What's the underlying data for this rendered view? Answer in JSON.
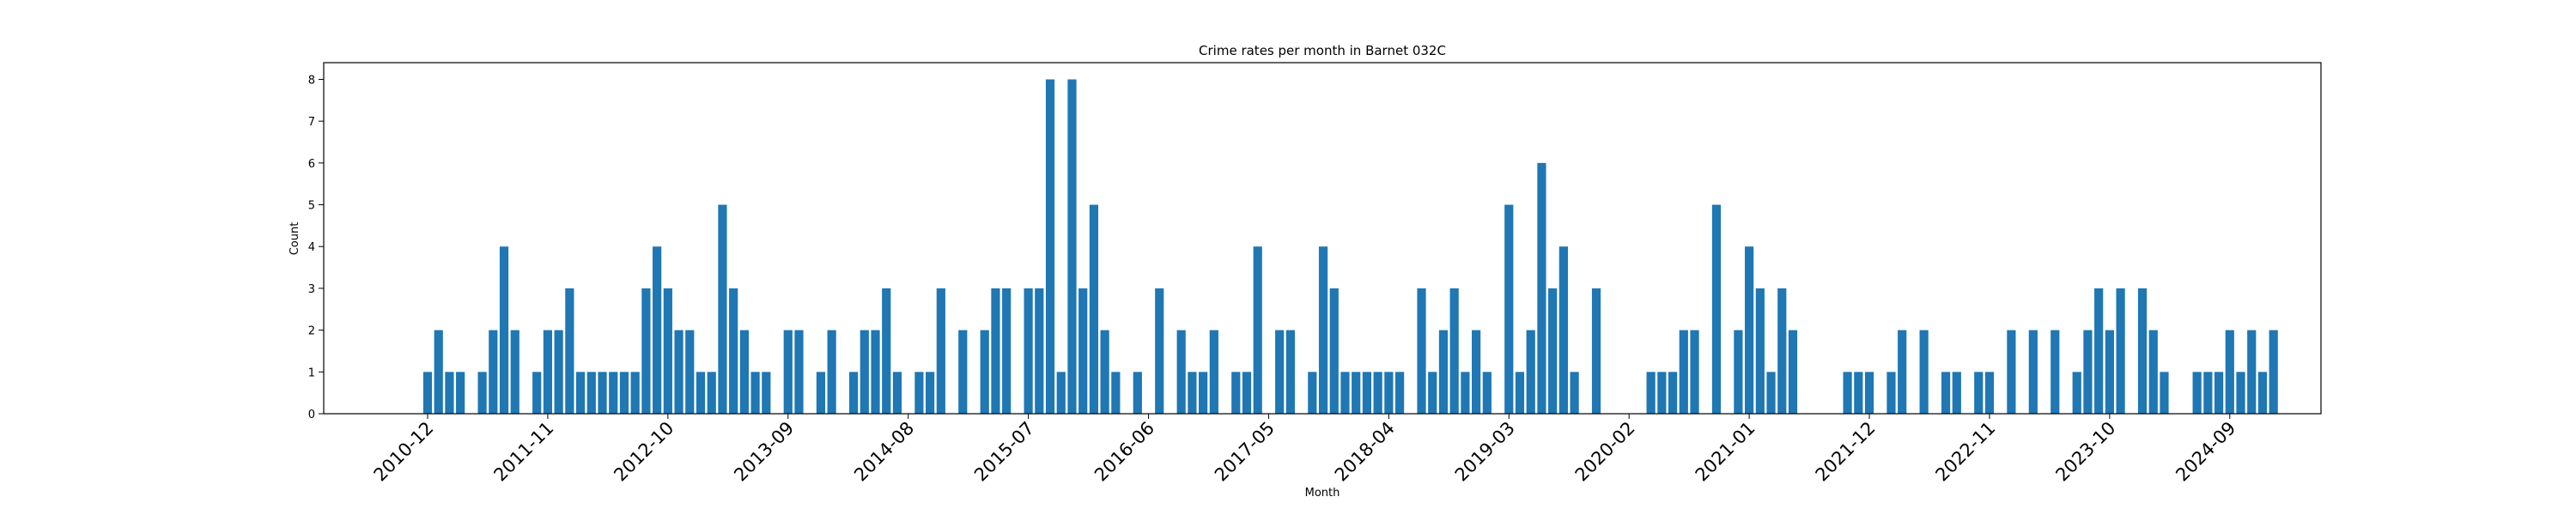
{
  "chart_data": {
    "type": "bar",
    "title": "Crime rates per month in Barnet 032C",
    "xlabel": "Month",
    "ylabel": "Count",
    "ylim": [
      0,
      8.4
    ],
    "yticks": [
      0,
      1,
      2,
      3,
      4,
      5,
      6,
      7,
      8
    ],
    "xticklabels": [
      "2010-12",
      "2011-11",
      "2012-10",
      "2013-09",
      "2014-08",
      "2015-07",
      "2016-06",
      "2017-05",
      "2018-04",
      "2019-03",
      "2020-02",
      "2021-01",
      "2021-12",
      "2022-11",
      "2023-10",
      "2024-09"
    ],
    "grid": false,
    "bar_color": "#1f77b4",
    "categories": [
      "2010-12",
      "2011-01",
      "2011-02",
      "2011-03",
      "2011-04",
      "2011-05",
      "2011-06",
      "2011-07",
      "2011-08",
      "2011-09",
      "2011-10",
      "2011-11",
      "2011-12",
      "2012-01",
      "2012-02",
      "2012-03",
      "2012-04",
      "2012-05",
      "2012-06",
      "2012-07",
      "2012-08",
      "2012-09",
      "2012-10",
      "2012-11",
      "2012-12",
      "2013-01",
      "2013-02",
      "2013-03",
      "2013-04",
      "2013-05",
      "2013-06",
      "2013-07",
      "2013-08",
      "2013-09",
      "2013-10",
      "2013-11",
      "2013-12",
      "2014-01",
      "2014-02",
      "2014-03",
      "2014-04",
      "2014-05",
      "2014-06",
      "2014-07",
      "2014-08",
      "2014-09",
      "2014-10",
      "2014-11",
      "2014-12",
      "2015-01",
      "2015-02",
      "2015-03",
      "2015-04",
      "2015-05",
      "2015-06",
      "2015-07",
      "2015-08",
      "2015-09",
      "2015-10",
      "2015-11",
      "2015-12",
      "2016-01",
      "2016-02",
      "2016-03",
      "2016-04",
      "2016-05",
      "2016-06",
      "2016-07",
      "2016-08",
      "2016-09",
      "2016-10",
      "2016-11",
      "2016-12",
      "2017-01",
      "2017-02",
      "2017-03",
      "2017-04",
      "2017-05",
      "2017-06",
      "2017-07",
      "2017-08",
      "2017-09",
      "2017-10",
      "2017-11",
      "2017-12",
      "2018-01",
      "2018-02",
      "2018-03",
      "2018-04",
      "2018-05",
      "2018-06",
      "2018-07",
      "2018-08",
      "2018-09",
      "2018-10",
      "2018-11",
      "2018-12",
      "2019-01",
      "2019-02",
      "2019-03",
      "2019-04",
      "2019-05",
      "2019-06",
      "2019-07",
      "2019-08",
      "2019-09",
      "2019-10",
      "2019-11",
      "2019-12",
      "2020-01",
      "2020-02",
      "2020-03",
      "2020-04",
      "2020-05",
      "2020-06",
      "2020-07",
      "2020-08",
      "2020-09",
      "2020-10",
      "2020-11",
      "2020-12",
      "2021-01",
      "2021-02",
      "2021-03",
      "2021-04",
      "2021-05",
      "2021-06",
      "2021-07",
      "2021-08",
      "2021-09",
      "2021-10",
      "2021-11",
      "2021-12",
      "2022-01",
      "2022-02",
      "2022-03",
      "2022-04",
      "2022-05",
      "2022-06",
      "2022-07",
      "2022-08",
      "2022-09",
      "2022-10",
      "2022-11",
      "2022-12",
      "2023-01",
      "2023-02",
      "2023-03",
      "2023-04",
      "2023-05",
      "2023-06",
      "2023-07",
      "2023-08",
      "2023-09",
      "2023-10",
      "2023-11",
      "2023-12",
      "2024-01",
      "2024-02",
      "2024-03",
      "2024-04",
      "2024-05",
      "2024-06",
      "2024-07",
      "2024-08",
      "2024-09",
      "2024-10",
      "2024-11",
      "2024-12",
      "2025-01"
    ],
    "values": [
      1,
      2,
      1,
      1,
      0,
      1,
      2,
      4,
      2,
      0,
      1,
      2,
      2,
      3,
      1,
      1,
      1,
      1,
      1,
      1,
      3,
      4,
      3,
      2,
      2,
      1,
      1,
      5,
      3,
      2,
      1,
      1,
      0,
      2,
      2,
      0,
      1,
      2,
      0,
      1,
      2,
      2,
      3,
      1,
      0,
      1,
      1,
      3,
      0,
      2,
      0,
      2,
      3,
      3,
      0,
      3,
      3,
      8,
      1,
      8,
      3,
      5,
      2,
      1,
      0,
      1,
      0,
      3,
      0,
      2,
      1,
      1,
      2,
      0,
      1,
      1,
      4,
      0,
      2,
      2,
      0,
      1,
      4,
      3,
      1,
      1,
      1,
      1,
      1,
      1,
      0,
      3,
      1,
      2,
      3,
      1,
      2,
      1,
      0,
      5,
      1,
      2,
      6,
      3,
      4,
      1,
      0,
      3,
      0,
      0,
      0,
      0,
      1,
      1,
      1,
      2,
      2,
      0,
      5,
      0,
      2,
      4,
      3,
      1,
      3,
      2,
      0,
      0,
      0,
      0,
      1,
      1,
      1,
      0,
      1,
      2,
      0,
      2,
      0,
      1,
      1,
      0,
      1,
      1,
      0,
      2,
      0,
      2,
      0,
      2,
      0,
      1,
      2,
      3,
      2,
      3,
      0,
      3,
      2,
      1,
      0,
      0,
      1,
      1,
      1,
      2,
      1,
      2,
      1,
      2
    ]
  }
}
